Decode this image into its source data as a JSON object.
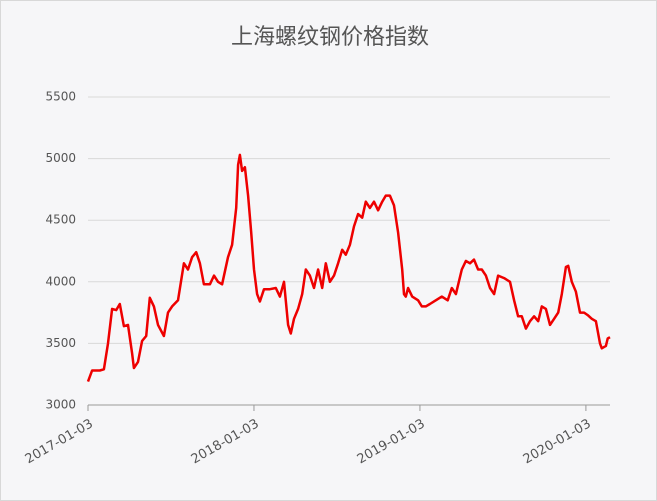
{
  "chart_data": {
    "type": "line",
    "title": "上海螺纹钢价格指数",
    "x": [
      "2017-01-03",
      "2017-01-12",
      "2017-01-29",
      "2017-02-07",
      "2017-02-16",
      "2017-02-25",
      "2017-03-06",
      "2017-03-14",
      "2017-03-23",
      "2017-04-01",
      "2017-04-10",
      "2017-04-14",
      "2017-04-23",
      "2017-05-02",
      "2017-05-11",
      "2017-05-19",
      "2017-05-28",
      "2017-06-06",
      "2017-06-19",
      "2017-06-28",
      "2017-07-07",
      "2017-07-20",
      "2017-08-02",
      "2017-08-11",
      "2017-08-20",
      "2017-08-29",
      "2017-09-06",
      "2017-09-15",
      "2017-09-28",
      "2017-10-07",
      "2017-10-16",
      "2017-10-25",
      "2017-11-07",
      "2017-11-16",
      "2017-11-25",
      "2017-11-29",
      "2017-12-03",
      "2017-12-08",
      "2017-12-14",
      "2017-12-21",
      "2017-12-28",
      "2018-01-03",
      "2018-01-10",
      "2018-01-16",
      "2018-01-25",
      "2018-02-07",
      "2018-02-20",
      "2018-03-01",
      "2018-03-10",
      "2018-03-19",
      "2018-03-25",
      "2018-04-01",
      "2018-04-10",
      "2018-04-19",
      "2018-04-27",
      "2018-05-06",
      "2018-05-15",
      "2018-05-24",
      "2018-06-02",
      "2018-06-10",
      "2018-06-19",
      "2018-06-28",
      "2018-07-07",
      "2018-07-16",
      "2018-07-24",
      "2018-08-02",
      "2018-08-11",
      "2018-08-20",
      "2018-08-29",
      "2018-09-06",
      "2018-09-15",
      "2018-09-24",
      "2018-10-03",
      "2018-10-12",
      "2018-10-20",
      "2018-10-29",
      "2018-11-07",
      "2018-11-16",
      "2018-11-25",
      "2018-11-29",
      "2018-12-03",
      "2018-12-08",
      "2018-12-17",
      "2018-12-30",
      "2019-01-07",
      "2019-01-16",
      "2019-01-25",
      "2019-02-07",
      "2019-02-20",
      "2019-03-05",
      "2019-03-14",
      "2019-03-23",
      "2019-04-05",
      "2019-04-14",
      "2019-04-23",
      "2019-05-02",
      "2019-05-11",
      "2019-05-19",
      "2019-05-28",
      "2019-06-06",
      "2019-06-15",
      "2019-06-24",
      "2019-07-07",
      "2019-07-20",
      "2019-07-29",
      "2019-08-07",
      "2019-08-15",
      "2019-08-24",
      "2019-09-02",
      "2019-09-11",
      "2019-09-20",
      "2019-09-28",
      "2019-10-07",
      "2019-10-16",
      "2019-10-25",
      "2019-11-03",
      "2019-11-11",
      "2019-11-20",
      "2019-11-25",
      "2019-12-03",
      "2019-12-12",
      "2019-12-21",
      "2019-12-30",
      "2020-01-07",
      "2020-01-16",
      "2020-01-25",
      "2020-02-03",
      "2020-02-07",
      "2020-02-16",
      "2020-02-20",
      "2020-02-25"
    ],
    "series": [
      {
        "color": "#ee0000",
        "values": [
          3190,
          3280,
          3280,
          3290,
          3500,
          3780,
          3770,
          3820,
          3640,
          3650,
          3420,
          3300,
          3350,
          3520,
          3560,
          3870,
          3800,
          3650,
          3560,
          3750,
          3800,
          3850,
          4150,
          4100,
          4200,
          4240,
          4150,
          3980,
          3980,
          4050,
          4000,
          3980,
          4200,
          4300,
          4600,
          4950,
          5030,
          4900,
          4930,
          4700,
          4400,
          4100,
          3900,
          3840,
          3940,
          3940,
          3950,
          3880,
          4000,
          3650,
          3580,
          3700,
          3780,
          3900,
          4100,
          4050,
          3950,
          4100,
          3950,
          4150,
          4000,
          4050,
          4150,
          4260,
          4220,
          4300,
          4450,
          4550,
          4520,
          4650,
          4600,
          4650,
          4580,
          4650,
          4700,
          4700,
          4620,
          4400,
          4100,
          3900,
          3880,
          3950,
          3880,
          3850,
          3800,
          3800,
          3820,
          3850,
          3880,
          3850,
          3950,
          3900,
          4100,
          4170,
          4150,
          4180,
          4100,
          4100,
          4050,
          3950,
          3900,
          4050,
          4030,
          4000,
          3850,
          3720,
          3720,
          3620,
          3680,
          3720,
          3680,
          3800,
          3780,
          3650,
          3700,
          3750,
          3900,
          4120,
          4130,
          4000,
          3920,
          3750,
          3750,
          3730,
          3700,
          3680,
          3500,
          3460,
          3480,
          3540,
          3550
        ]
      }
    ],
    "xlim": [
      "2017-01-03",
      "2020-02-25"
    ],
    "xticks": [
      "2017-01-03",
      "2018-01-03",
      "2019-01-03",
      "2020-01-03"
    ],
    "ylim": [
      3000,
      5500
    ],
    "yticks": [
      3000,
      3500,
      4000,
      4500,
      5000,
      5500
    ],
    "grid": true
  }
}
